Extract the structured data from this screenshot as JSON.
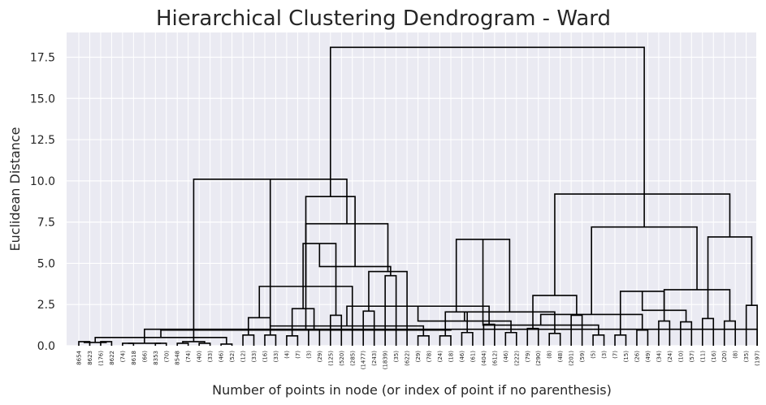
{
  "chart_data": {
    "type": "dendrogram",
    "title": "Hierarchical Clustering Dendrogram - Ward",
    "xlabel": "Number of points in node (or index of point if no parenthesis)",
    "ylabel": "Euclidean Distance",
    "ylim": [
      0,
      19
    ],
    "yticks": [
      0.0,
      2.5,
      5.0,
      7.5,
      10.0,
      12.5,
      15.0,
      17.5
    ],
    "ytick_labels": [
      "0.0",
      "2.5",
      "5.0",
      "7.5",
      "10.0",
      "12.5",
      "15.0",
      "17.5"
    ],
    "grid": true,
    "leaf_labels": [
      "8654",
      "8623",
      "(176)",
      "8622",
      "(74)",
      "8618",
      "(66)",
      "8353",
      "(70)",
      "8548",
      "(74)",
      "(40)",
      "(33)",
      "(46)",
      "(52)",
      "(12)",
      "(33)",
      "(16)",
      "(33)",
      "(4)",
      "(7)",
      "(3)",
      "(29)",
      "(125)",
      "(520)",
      "(285)",
      "(1477)",
      "(243)",
      "(1839)",
      "(35)",
      "(622)",
      "(29)",
      "(78)",
      "(24)",
      "(18)",
      "(46)",
      "(61)",
      "(404)",
      "(612)",
      "(46)",
      "(222)",
      "(79)",
      "(290)",
      "(8)",
      "(48)",
      "(201)",
      "(59)",
      "(5)",
      "(3)",
      "(7)",
      "(15)",
      "(26)",
      "(49)",
      "(34)",
      "(24)",
      "(10)",
      "(57)",
      "(11)",
      "(16)",
      "(20)",
      "(8)",
      "(35)",
      "(197)"
    ],
    "merges": [
      [
        0,
        1,
        0.25
      ],
      [
        2,
        3,
        0.25
      ],
      [
        4,
        5,
        0.15
      ],
      [
        7,
        8,
        0.15
      ],
      [
        9,
        10,
        0.15
      ],
      [
        11,
        12,
        0.15
      ],
      [
        13,
        14,
        0.1
      ],
      [
        63,
        64,
        0.2
      ],
      [
        65,
        66,
        0.15
      ],
      [
        67,
        68,
        0.25
      ],
      [
        69,
        70,
        0.5
      ],
      [
        62,
        71,
        1.0
      ],
      [
        15,
        16,
        0.65
      ],
      [
        17,
        18,
        0.65
      ],
      [
        19,
        20,
        0.6
      ],
      [
        21,
        22,
        0.95
      ],
      [
        73,
        74,
        0.95
      ],
      [
        75,
        76,
        1.7
      ],
      [
        77,
        78,
        2.25
      ],
      [
        23,
        24,
        1.85
      ],
      [
        80,
        25,
        3.6
      ],
      [
        26,
        27,
        2.1
      ],
      [
        81,
        82,
        6.2
      ],
      [
        28,
        29,
        4.25
      ],
      [
        84,
        30,
        4.5
      ],
      [
        85,
        86,
        4.8
      ],
      [
        83,
        87,
        7.4
      ],
      [
        79,
        88,
        9.05
      ],
      [
        72,
        89,
        10.1
      ],
      [
        31,
        32,
        0.6
      ],
      [
        33,
        34,
        0.6
      ],
      [
        35,
        36,
        0.8
      ],
      [
        37,
        38,
        1.3
      ],
      [
        91,
        92,
        1.2
      ],
      [
        93,
        94,
        2.05
      ],
      [
        95,
        96,
        2.4
      ],
      [
        39,
        40,
        0.8
      ],
      [
        41,
        42,
        1.05
      ],
      [
        98,
        99,
        1.5
      ],
      [
        43,
        44,
        0.75
      ],
      [
        45,
        46,
        1.85
      ],
      [
        101,
        102,
        2.05
      ],
      [
        100,
        103,
        3.05
      ],
      [
        97,
        104,
        6.45
      ],
      [
        47,
        48,
        0.65
      ],
      [
        49,
        50,
        0.65
      ],
      [
        106,
        107,
        1.25
      ],
      [
        51,
        52,
        0.95
      ],
      [
        53,
        54,
        1.5
      ],
      [
        109,
        110,
        1.9
      ],
      [
        108,
        111,
        3.3
      ],
      [
        55,
        56,
        1.45
      ],
      [
        57,
        58,
        1.65
      ],
      [
        113,
        114,
        2.15
      ],
      [
        59,
        60,
        1.5
      ],
      [
        61,
        62,
        2.45
      ],
      [
        116,
        117,
        3.4
      ],
      [
        115,
        118,
        6.6
      ],
      [
        112,
        119,
        7.2
      ],
      [
        105,
        120,
        9.2
      ],
      [
        90,
        121,
        18.1
      ]
    ],
    "leaf_count": 63
  }
}
